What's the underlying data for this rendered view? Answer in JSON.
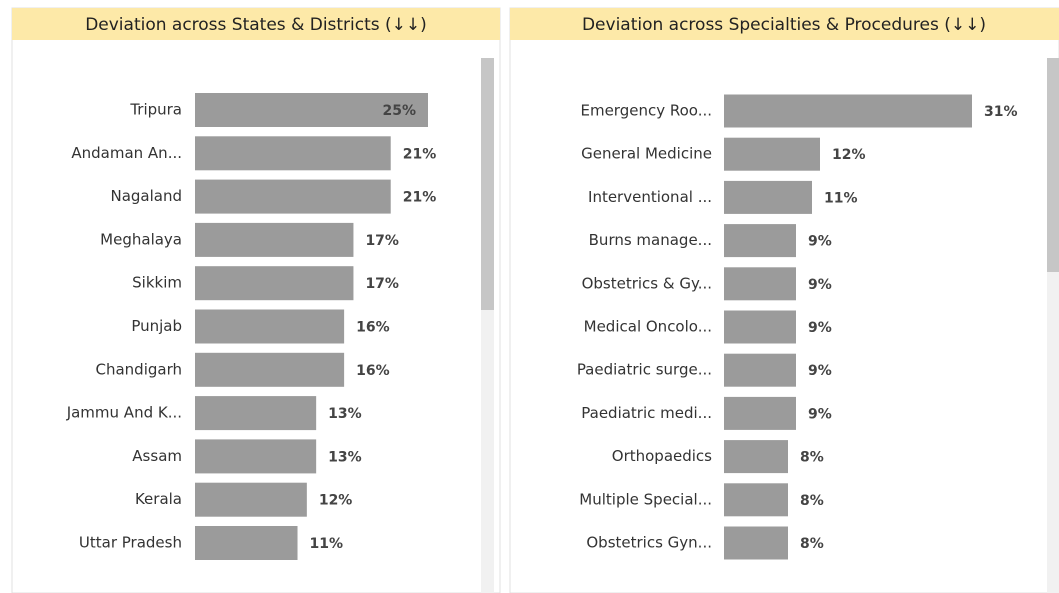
{
  "chart_data": [
    {
      "type": "bar",
      "orientation": "horizontal",
      "title": "Deviation across States & Districts (↓↓)",
      "categories": [
        "Tripura",
        "Andaman An...",
        "Nagaland",
        "Meghalaya",
        "Sikkim",
        "Punjab",
        "Chandigarh",
        "Jammu And K...",
        "Assam",
        "Kerala",
        "Uttar Pradesh"
      ],
      "values": [
        25,
        21,
        21,
        17,
        17,
        16,
        16,
        13,
        13,
        12,
        11
      ],
      "value_labels": [
        "25%",
        "21%",
        "21%",
        "17%",
        "17%",
        "16%",
        "16%",
        "13%",
        "13%",
        "12%",
        "11%"
      ],
      "color": "#9b9b9b"
    },
    {
      "type": "bar",
      "orientation": "horizontal",
      "title": "Deviation across Specialties & Procedures (↓↓)",
      "categories": [
        "Emergency Roo...",
        "General Medicine",
        "Interventional ...",
        "Burns manage...",
        "Obstetrics & Gy...",
        "Medical Oncolo...",
        "Paediatric surge...",
        "Paediatric medi...",
        "Orthopaedics",
        "Multiple Special...",
        "Obstetrics Gyn..."
      ],
      "values": [
        31,
        12,
        11,
        9,
        9,
        9,
        9,
        9,
        8,
        8,
        8
      ],
      "value_labels": [
        "31%",
        "12%",
        "11%",
        "9%",
        "9%",
        "9%",
        "9%",
        "9%",
        "8%",
        "8%",
        "8%"
      ],
      "color": "#9b9b9b"
    }
  ]
}
